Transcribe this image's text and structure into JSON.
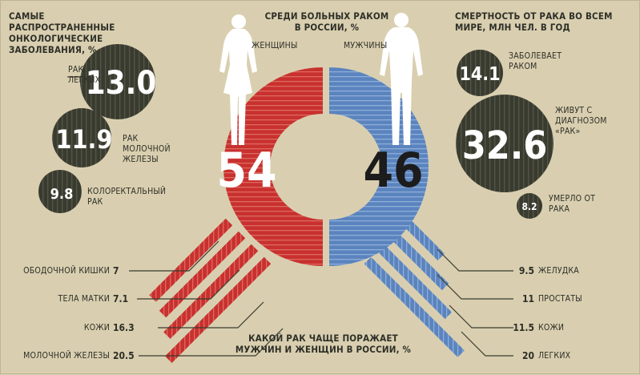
{
  "left_panel": {
    "title": "САМЫЕ РАСПРОСТРАНЕННЫЕ ОНКОЛОГИЧЕСКИЕ ЗАБОЛЕВАНИЯ, %",
    "items": [
      {
        "label": "РАК ЛЕГКИХ",
        "value": 13.0,
        "display": "13.0"
      },
      {
        "label": "РАК МОЛОЧНОЙ ЖЕЛЕЗЫ",
        "value": 11.9,
        "display": "11.9"
      },
      {
        "label": "КОЛОРЕКТАЛЬНЫЙ РАК",
        "value": 9.8,
        "display": "9.8"
      }
    ]
  },
  "center_panel": {
    "title": "СРЕДИ БОЛЬНЫХ РАКОМ В РОССИИ, %",
    "women_label": "ЖЕНЩИНЫ",
    "men_label": "МУЖЧИНЫ",
    "women_value": 54,
    "men_value": 46,
    "women_display": "54",
    "men_display": "46"
  },
  "right_panel": {
    "title": "СМЕРТНОСТЬ ОТ РАКА ВО ВСЕМ МИРЕ, МЛН ЧЕЛ. В ГОД",
    "items": [
      {
        "label": "ЗАБОЛЕВАЕТ РАКОМ",
        "value": 14.1,
        "display": "14.1"
      },
      {
        "label": "ЖИВУТ С ДИАГНОЗОМ «РАК»",
        "value": 32.6,
        "display": "32.6"
      },
      {
        "label": "УМЕРЛО ОТ РАКА",
        "value": 8.2,
        "display": "8.2"
      }
    ]
  },
  "bottom_panel": {
    "title": "КАКОЙ РАК ЧАЩЕ ПОРАЖАЕТ МУЖЧИН И ЖЕНЩИН В РОССИИ, %",
    "women": [
      {
        "label": "ОБОДОЧНОЙ КИШКИ",
        "value": 7,
        "display": "7"
      },
      {
        "label": "ТЕЛА МАТКИ",
        "value": 7.1,
        "display": "7.1"
      },
      {
        "label": "КОЖИ",
        "value": 16.3,
        "display": "16.3"
      },
      {
        "label": "МОЛОЧНОЙ ЖЕЛЕЗЫ",
        "value": 20.5,
        "display": "20.5"
      }
    ],
    "men": [
      {
        "label": "ЖЕЛУДКА",
        "value": 9.5,
        "display": "9.5"
      },
      {
        "label": "ПРОСТАТЫ",
        "value": 11,
        "display": "11"
      },
      {
        "label": "КОЖИ",
        "value": 11.5,
        "display": "11.5"
      },
      {
        "label": "ЛЕГКИХ",
        "value": 20,
        "display": "20"
      }
    ]
  },
  "colors": {
    "background": "#d9cfb0",
    "dark_circle": "#3a3b2f",
    "women_red": "#c8312f",
    "men_blue": "#5b84bf",
    "text": "#2e2f28"
  },
  "icons": [
    "female-figure-icon",
    "male-figure-icon"
  ]
}
